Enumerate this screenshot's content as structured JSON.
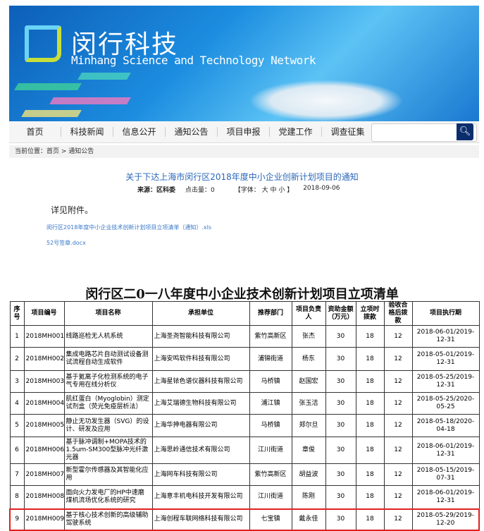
{
  "header": {
    "title_cn": "闵行科技",
    "title_en": "Minhang Science and Technology Network"
  },
  "nav": [
    "首页",
    "科技新闻",
    "信息公开",
    "通知公告",
    "项目申报",
    "党建工作",
    "调查征集"
  ],
  "search": {
    "placeholder": "",
    "icon": "search-icon"
  },
  "breadcrumb": "当前位置：首页 > 通知公告",
  "article": {
    "title": "关于下达上海市闵行区2018年度中小企业创新计划项目的通知",
    "source": "来源：区科委",
    "clicks": "点击量：0",
    "font": "【字体： 大  中  小 】",
    "date": "2018-09-06",
    "body": "详见附件。",
    "attachments": [
      "闵行区2018年度中小企业技术创新计划项目立项清单（通知）.xls",
      "52号签章.docx"
    ]
  },
  "table": {
    "title": "闵行区二0一八年度中小企业技术创新计划项目立项清单",
    "headers": [
      "序号",
      "项目编号",
      "项目名称",
      "承担单位",
      "推荐部门",
      "项目负责人",
      "资助金额（万元）",
      "立项时拨款",
      "验收合格后拨款",
      "项目执行期"
    ],
    "rows": [
      [
        "1",
        "2018MH001",
        "线路巡检无人机系统",
        "上海圣尧智能科技有限公司",
        "紫竹高新区",
        "张杰",
        "30",
        "18",
        "12",
        "2018-06-01/2019-12-31"
      ],
      [
        "2",
        "2018MH002",
        "集成电路芯片自动测试设备测试流程自动生成软件",
        "上海安鸣软件科技有限公司",
        "浦锦街道",
        "杨东",
        "30",
        "18",
        "12",
        "2018-05-01/2019-12-31"
      ],
      [
        "3",
        "2018MH003",
        "基于氦离子化检测系统的电子气专用在线分析仪",
        "上海星铱色谱仪器科技有限公司",
        "马桥镇",
        "赵国宏",
        "30",
        "18",
        "12",
        "2018-05-25/2019-12-31"
      ],
      [
        "4",
        "2018MH004",
        "肌红蛋白（Myoglobin）测定试剂盒（荧光免疫层析法）",
        "上海艾瑞德生物科技有限公司",
        "浦江镇",
        "张玉洁",
        "30",
        "18",
        "12",
        "2018-05-25/2020-05-25"
      ],
      [
        "5",
        "2018MH005",
        "静止无功发生器（SVG）的设计、研发及应用",
        "上海华抻电器有限公司",
        "马桥镇",
        "郑尔旦",
        "30",
        "18",
        "12",
        "2018-05-18/2020-04-18"
      ],
      [
        "6",
        "2018MH006",
        "基于脉冲调制+MOPA技术的1.5um-SM300型脉冲光纤激光器",
        "上海思岭通信技术有限公司",
        "江川街道",
        "章俊",
        "30",
        "18",
        "12",
        "2018-06-01/2019-12-31"
      ],
      [
        "7",
        "2018MH007",
        "新型霍尔传感器及其智能化应用",
        "上海网车科技有限公司",
        "紫竹高新区",
        "胡益波",
        "30",
        "18",
        "12",
        "2018-05-15/2019-07-31"
      ],
      [
        "8",
        "2018MH008",
        "面向火力发电厂的HP中速磨煤机流场优化系统的研究",
        "上海意丰机电科技开发有限公司",
        "江川街道",
        "陈刚",
        "30",
        "18",
        "12",
        "2018-06-01/2019-12-31"
      ],
      [
        "9",
        "2018MH009",
        "基于核心技术创新的高级辅助驾驶系统",
        "上海创程车联网络科技有限公司",
        "七宝镇",
        "戴永佳",
        "30",
        "18",
        "12",
        "2018-05-29/2019-12-20"
      ]
    ],
    "highlighted_row": "9"
  }
}
